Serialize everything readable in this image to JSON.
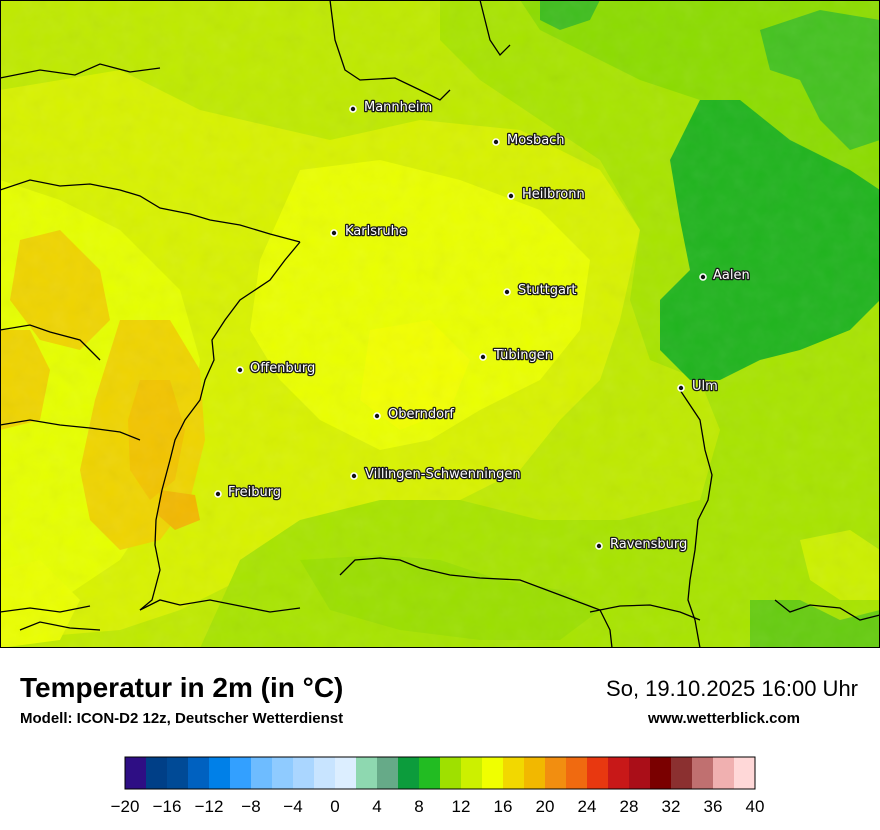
{
  "map": {
    "cities": [
      {
        "name": "Mannheim"
      },
      {
        "name": "Mosbach"
      },
      {
        "name": "Heilbronn"
      },
      {
        "name": "Karlsruhe"
      },
      {
        "name": "Aalen"
      },
      {
        "name": "Stuttgart"
      },
      {
        "name": "Tübingen"
      },
      {
        "name": "Offenburg"
      },
      {
        "name": "Ulm"
      },
      {
        "name": "Oberndorf"
      },
      {
        "name": "Villingen-Schwenningen"
      },
      {
        "name": "Freiburg"
      },
      {
        "name": "Ravensburg"
      }
    ]
  },
  "footer": {
    "title": "Temperatur in 2m (in °C)",
    "subtitle": "Modell: ICON-D2 12z, Deutscher Wetterdienst",
    "datetime": "So, 19.10.2025 16:00 Uhr",
    "website": "www.wetterblick.com"
  },
  "legend": {
    "colors": [
      "#2e0e84",
      "#003f87",
      "#004a96",
      "#0061c0",
      "#0080e8",
      "#33a0ff",
      "#6ebcff",
      "#8fcbff",
      "#aad6ff",
      "#c8e4ff",
      "#dceeff",
      "#8ed8b0",
      "#66aa88",
      "#0c9c3c",
      "#22bc22",
      "#9fe000",
      "#ccf000",
      "#f0ff00",
      "#f2d800",
      "#f2b800",
      "#f28e10",
      "#f06a10",
      "#e83810",
      "#c81818",
      "#aa0e18",
      "#7a0000",
      "#8b3030",
      "#c07070",
      "#f0b0b0",
      "#ffd8d8"
    ],
    "tick_labels": [
      "−20",
      "−16",
      "−12",
      "−8",
      "−4",
      "0",
      "4",
      "8",
      "12",
      "16",
      "20",
      "24",
      "28",
      "32",
      "36",
      "40"
    ]
  }
}
